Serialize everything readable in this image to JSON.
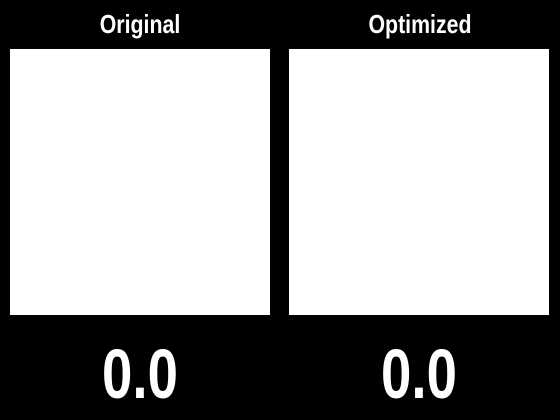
{
  "panels": [
    {
      "title": "Original",
      "score": "0.0",
      "image_color": "#ffffff"
    },
    {
      "title": "Optimized",
      "score": "0.0",
      "image_color": "#ffffff"
    }
  ],
  "background_color": "#000000",
  "text_color": "#ffffff"
}
